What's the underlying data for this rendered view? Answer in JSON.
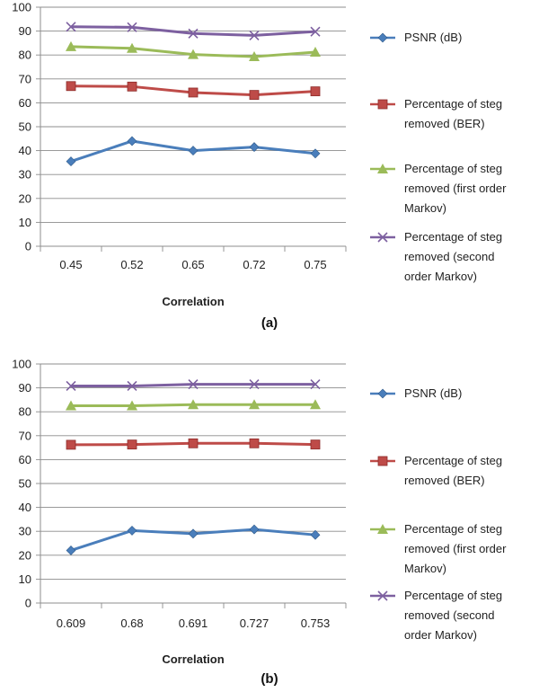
{
  "chart_data": [
    {
      "type": "line",
      "panel_label": "(a)",
      "xlabel": "Correlation",
      "ylabel": "",
      "ylim": [
        0,
        100
      ],
      "yticks": [
        0,
        10,
        20,
        30,
        40,
        50,
        60,
        70,
        80,
        90,
        100
      ],
      "categories": [
        "0.45",
        "0.52",
        "0.65",
        "0.72",
        "0.75"
      ],
      "grid": true,
      "legend_position": "right",
      "series": [
        {
          "name": "PSNR (dB)",
          "legend_lines": [
            "PSNR (dB)"
          ],
          "color": "#4a7ebb",
          "marker": "diamond",
          "values": [
            35.5,
            44,
            40,
            41.5,
            38.8
          ]
        },
        {
          "name": "Percentage of steg removed (BER)",
          "legend_lines": [
            "Percentage of steg",
            "removed (BER)"
          ],
          "color": "#be4b48",
          "marker": "square",
          "values": [
            67,
            66.8,
            64.3,
            63.3,
            64.8
          ]
        },
        {
          "name": "Percentage of steg removed (first order Markov)",
          "legend_lines": [
            "Percentage of steg",
            "removed (first order",
            "Markov)"
          ],
          "color": "#9bbb59",
          "marker": "triangle",
          "values": [
            83.5,
            82.8,
            80.2,
            79.3,
            81.2
          ]
        },
        {
          "name": "Percentage of steg removed (second order Markov)",
          "legend_lines": [
            "Percentage of steg",
            "removed (second",
            "order Markov)"
          ],
          "color": "#7d60a0",
          "marker": "x",
          "values": [
            91.8,
            91.6,
            89,
            88.2,
            89.8
          ]
        }
      ]
    },
    {
      "type": "line",
      "panel_label": "(b)",
      "xlabel": "Correlation",
      "ylabel": "",
      "ylim": [
        0,
        100
      ],
      "yticks": [
        0,
        10,
        20,
        30,
        40,
        50,
        60,
        70,
        80,
        90,
        100
      ],
      "categories": [
        "0.609",
        "0.68",
        "0.691",
        "0.727",
        "0.753"
      ],
      "grid": true,
      "legend_position": "right",
      "series": [
        {
          "name": "PSNR (dB)",
          "legend_lines": [
            "PSNR (dB)"
          ],
          "color": "#4a7ebb",
          "marker": "diamond",
          "values": [
            22,
            30.3,
            29,
            30.8,
            28.5
          ]
        },
        {
          "name": "Percentage of steg removed (BER)",
          "legend_lines": [
            "Percentage of steg",
            "removed (BER)"
          ],
          "color": "#be4b48",
          "marker": "square",
          "values": [
            66.2,
            66.3,
            66.8,
            66.8,
            66.3
          ]
        },
        {
          "name": "Percentage of steg removed (first order Markov)",
          "legend_lines": [
            "Percentage of steg",
            "removed (first order",
            "Markov)"
          ],
          "color": "#9bbb59",
          "marker": "triangle",
          "values": [
            82.5,
            82.5,
            83,
            83,
            83
          ]
        },
        {
          "name": "Percentage of steg removed (second order Markov)",
          "legend_lines": [
            "Percentage of steg",
            "removed (second",
            "order Markov)"
          ],
          "color": "#7d60a0",
          "marker": "x",
          "values": [
            90.8,
            90.8,
            91.5,
            91.5,
            91.5
          ]
        }
      ]
    }
  ]
}
